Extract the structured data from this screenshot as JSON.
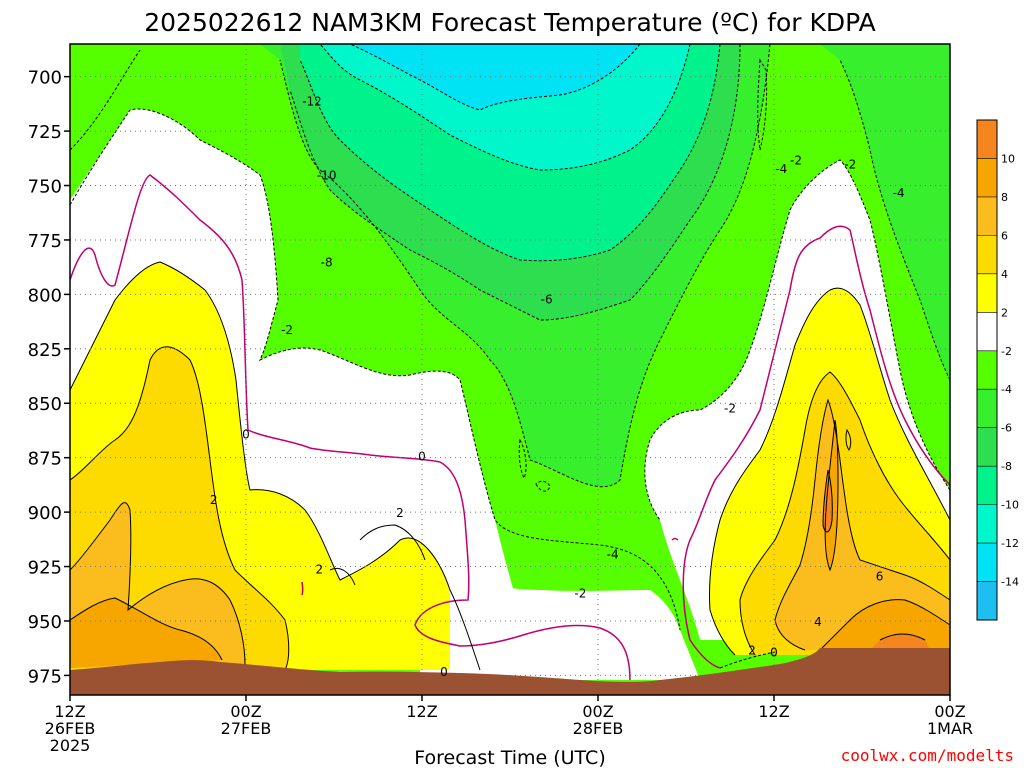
{
  "chart_data": {
    "type": "heatmap",
    "title": "2025022612 NAM3KM Forecast Temperature (ºC) for KDPA",
    "xlabel": "Forecast Time (UTC)",
    "credit": "coolwx.com/modelts",
    "x_ticks": [
      {
        "hours": 0,
        "lines": [
          "12Z",
          "26FEB",
          "2025"
        ]
      },
      {
        "hours": 12,
        "lines": [
          "00Z",
          "27FEB"
        ]
      },
      {
        "hours": 24,
        "lines": [
          "12Z"
        ]
      },
      {
        "hours": 36,
        "lines": [
          "00Z",
          "28FEB"
        ]
      },
      {
        "hours": 48,
        "lines": [
          "12Z"
        ]
      },
      {
        "hours": 60,
        "lines": [
          "00Z",
          "1MAR"
        ]
      }
    ],
    "xlim": [
      0,
      60
    ],
    "y_ticks": [
      "700",
      "725",
      "750",
      "775",
      "800",
      "825",
      "850",
      "875",
      "900",
      "925",
      "950",
      "975"
    ],
    "ylim": [
      984,
      685
    ],
    "colorbar": {
      "labels": [
        "10",
        "8",
        "6",
        "4",
        "2",
        "-2",
        "-4",
        "-6",
        "-8",
        "-10",
        "-12",
        "-14"
      ],
      "bins": [
        {
          "range": "10 to 12",
          "color": "#f5861f"
        },
        {
          "range": "8 to 10",
          "color": "#f7a600"
        },
        {
          "range": "6 to 8",
          "color": "#fbbd1e"
        },
        {
          "range": "4 to 6",
          "color": "#fddb00"
        },
        {
          "range": "2 to 4",
          "color": "#ffff00"
        },
        {
          "range": "-2 to 2",
          "color": "#ffffff"
        },
        {
          "range": "-4 to -2",
          "color": "#55ff00"
        },
        {
          "range": "-6 to -4",
          "color": "#37ef2d"
        },
        {
          "range": "-8 to -6",
          "color": "#2ddf4f"
        },
        {
          "range": "-10 to -8",
          "color": "#00f28a"
        },
        {
          "range": "-12 to -10",
          "color": "#00f7cb"
        },
        {
          "range": "-14 to -12",
          "color": "#00e3f4"
        },
        {
          "range": "-16 to -14",
          "color": "#1cbff0"
        }
      ]
    },
    "terrain_color": "#9b5232",
    "contour_labels": [
      {
        "text": "-12",
        "hours": 16.5,
        "hPa": 711
      },
      {
        "text": "-10",
        "hours": 17.5,
        "hPa": 745
      },
      {
        "text": "-8",
        "hours": 17.5,
        "hPa": 785
      },
      {
        "text": "-6",
        "hours": 32.5,
        "hPa": 802
      },
      {
        "text": "-4",
        "hours": 48.5,
        "hPa": 742
      },
      {
        "text": "-2",
        "hours": 49.5,
        "hPa": 738
      },
      {
        "text": "-2",
        "hours": 53.2,
        "hPa": 740
      },
      {
        "text": "-4",
        "hours": 56.5,
        "hPa": 753
      },
      {
        "text": "-2",
        "hours": 14.8,
        "hPa": 816
      },
      {
        "text": "0",
        "hours": 12.0,
        "hPa": 864
      },
      {
        "text": "0",
        "hours": 24.0,
        "hPa": 874
      },
      {
        "text": "2",
        "hours": 9.8,
        "hPa": 894
      },
      {
        "text": "2",
        "hours": 22.5,
        "hPa": 900
      },
      {
        "text": "2",
        "hours": 17.0,
        "hPa": 926
      },
      {
        "text": "-2",
        "hours": 45.0,
        "hPa": 852
      },
      {
        "text": "-4",
        "hours": 37.0,
        "hPa": 919
      },
      {
        "text": "-2",
        "hours": 34.8,
        "hPa": 937
      },
      {
        "text": "0",
        "hours": 25.5,
        "hPa": 973
      },
      {
        "text": "2",
        "hours": 46.5,
        "hPa": 963
      },
      {
        "text": "0",
        "hours": 48.0,
        "hPa": 964
      },
      {
        "text": "4",
        "hours": 51.0,
        "hPa": 950
      },
      {
        "text": "6",
        "hours": 55.2,
        "hPa": 929
      }
    ]
  }
}
